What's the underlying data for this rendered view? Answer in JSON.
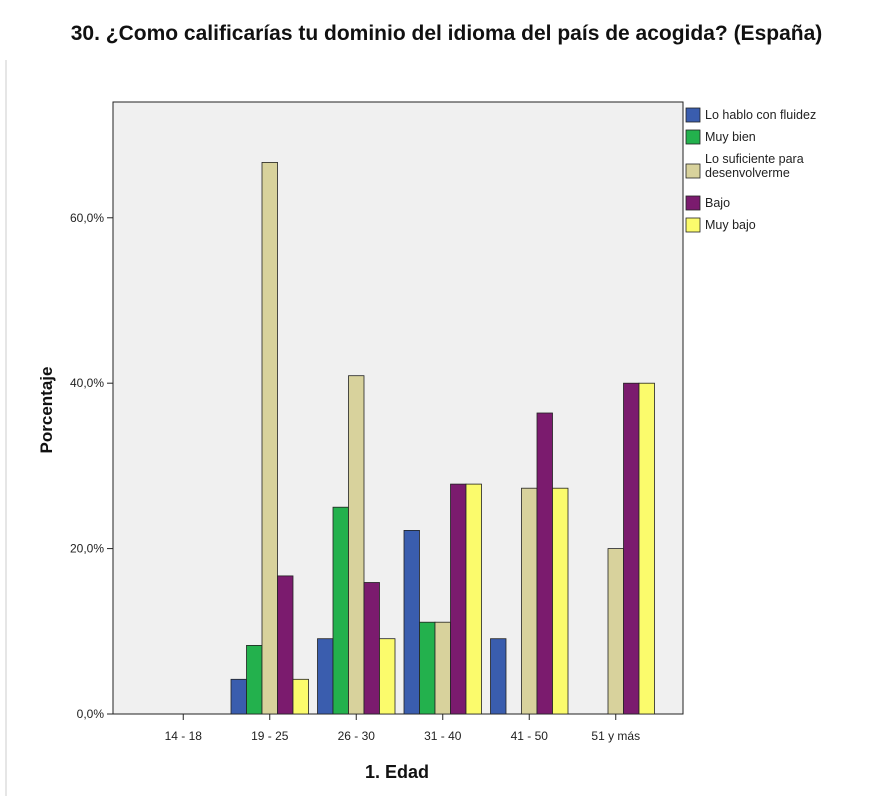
{
  "chart_data": {
    "type": "bar",
    "title": "30. ¿Como calificarías tu dominio del idioma del país de acogida? (España)",
    "xlabel": "1. Edad",
    "ylabel": "Porcentaje",
    "categories": [
      "14 - 18",
      "19 - 25",
      "26 - 30",
      "31 - 40",
      "41 - 50",
      "51 y más"
    ],
    "y_ticks": [
      "0,0%",
      "20,0%",
      "40,0%",
      "60,0%"
    ],
    "y_tick_values": [
      0,
      20,
      40,
      60
    ],
    "ylim": [
      0,
      74
    ],
    "legend_position": "right",
    "series": [
      {
        "name": "Lo hablo con fluidez",
        "legend_lines": [
          "Lo hablo con fluidez"
        ],
        "color": "#3a5dae",
        "values": [
          0,
          4.2,
          9.1,
          22.2,
          9.1,
          0
        ]
      },
      {
        "name": "Muy bien",
        "legend_lines": [
          "Muy bien"
        ],
        "color": "#23b14d",
        "values": [
          0,
          8.3,
          25.0,
          11.1,
          0,
          0
        ]
      },
      {
        "name": "Lo suficiente para desenvolverme",
        "legend_lines": [
          "Lo suficiente para",
          "desenvolverme"
        ],
        "color": "#d8d29c",
        "values": [
          0,
          66.7,
          40.9,
          11.1,
          27.3,
          20.0
        ]
      },
      {
        "name": "Bajo",
        "legend_lines": [
          "Bajo"
        ],
        "color": "#7b1b6e",
        "values": [
          0,
          16.7,
          15.9,
          27.8,
          36.4,
          40.0
        ]
      },
      {
        "name": "Muy bajo",
        "legend_lines": [
          "Muy bajo"
        ],
        "color": "#fbfb6c",
        "values": [
          0,
          4.2,
          9.1,
          27.8,
          27.3,
          40.0
        ]
      }
    ]
  }
}
